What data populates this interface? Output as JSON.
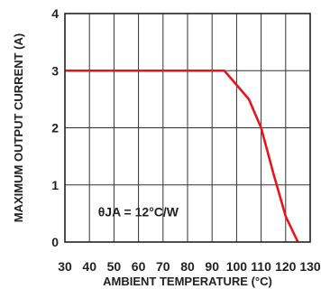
{
  "chart_data": {
    "type": "line",
    "title": "",
    "xlabel": "AMBIENT TEMPERATURE (°C)",
    "ylabel": "MAXIMUM OUTPUT CURRENT (A)",
    "xlim": [
      30,
      130
    ],
    "ylim": [
      0,
      4
    ],
    "x_ticks": [
      30,
      40,
      50,
      60,
      70,
      80,
      90,
      100,
      110,
      120,
      130
    ],
    "y_ticks": [
      0,
      1,
      2,
      3,
      4
    ],
    "x_tick_labels": [
      "30",
      "40",
      "50",
      "60",
      "70",
      "80",
      "90",
      "100",
      "110",
      "120",
      "130"
    ],
    "y_tick_labels": [
      "0",
      "1",
      "2",
      "3",
      "4"
    ],
    "grid": true,
    "series": [
      {
        "color": "#e8141c",
        "x": [
          30,
          95,
          105,
          110,
          115,
          120,
          125
        ],
        "y": [
          3,
          3,
          2.5,
          2.0,
          1.2,
          0.45,
          0
        ]
      }
    ],
    "annotation": "θJA = 12°C/W"
  }
}
